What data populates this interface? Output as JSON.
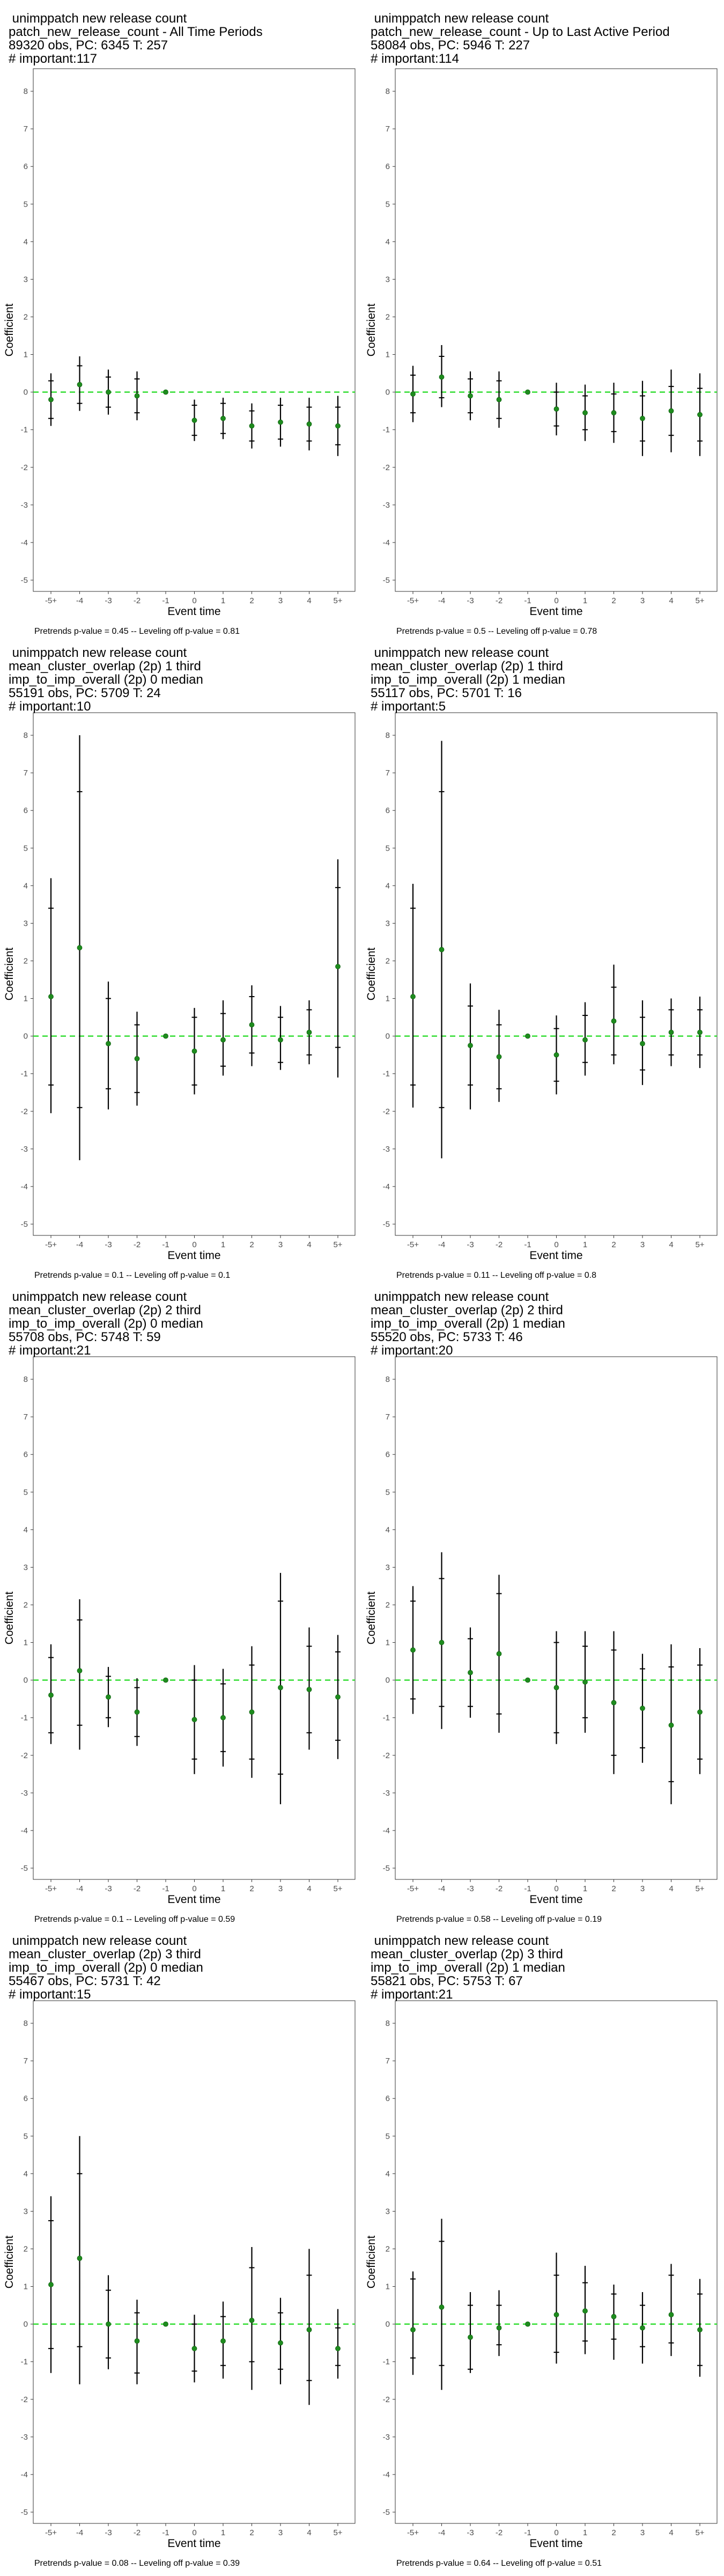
{
  "layout": {
    "columns": 2,
    "rows": 4
  },
  "style": {
    "point_color": "#1e8c1e",
    "zero_line_color": "#33dd33",
    "bar_color": "#000000",
    "frame_color": "#333333",
    "grid": false
  },
  "chart_data": [
    {
      "type": "scatter",
      "title": [
        " unimppatch new release count",
        "patch_new_release_count - All Time Periods",
        "89320 obs, PC: 6345 T: 257",
        "# important:117"
      ],
      "xlabel": "Event time",
      "ylabel": "Coefficient",
      "x": [
        "-5+",
        "-4",
        "-3",
        "-2",
        "-1",
        "0",
        "1",
        "2",
        "3",
        "4",
        "5+"
      ],
      "y": [
        -0.2,
        0.2,
        0.0,
        -0.1,
        0.0,
        -0.75,
        -0.7,
        -0.9,
        -0.8,
        -0.85,
        -0.9
      ],
      "ci_90": [
        [
          -0.7,
          0.3
        ],
        [
          -0.3,
          0.7
        ],
        [
          -0.4,
          0.4
        ],
        [
          -0.55,
          0.35
        ],
        [
          0.0,
          0.0
        ],
        [
          -1.15,
          -0.35
        ],
        [
          -1.1,
          -0.3
        ],
        [
          -1.3,
          -0.5
        ],
        [
          -1.25,
          -0.35
        ],
        [
          -1.3,
          -0.4
        ],
        [
          -1.4,
          -0.4
        ]
      ],
      "ci_95": [
        [
          -0.9,
          0.5
        ],
        [
          -0.5,
          0.95
        ],
        [
          -0.6,
          0.6
        ],
        [
          -0.75,
          0.55
        ],
        [
          0.0,
          0.0
        ],
        [
          -1.3,
          -0.2
        ],
        [
          -1.25,
          -0.15
        ],
        [
          -1.5,
          -0.3
        ],
        [
          -1.45,
          -0.15
        ],
        [
          -1.55,
          -0.15
        ],
        [
          -1.7,
          -0.1
        ]
      ],
      "ylim": [
        -5.3,
        8.6
      ],
      "yticks": [
        -5,
        -4,
        -3,
        -2,
        -1,
        0,
        1,
        2,
        3,
        4,
        5,
        6,
        7,
        8
      ],
      "footnote": "Pretrends p-value = 0.45 -- Leveling off p-value = 0.81"
    },
    {
      "type": "scatter",
      "title": [
        " unimppatch new release count",
        "patch_new_release_count - Up to Last Active Period",
        "58084 obs, PC: 5946 T: 227",
        "# important:114"
      ],
      "xlabel": "Event time",
      "ylabel": "Coefficient",
      "x": [
        "-5+",
        "-4",
        "-3",
        "-2",
        "-1",
        "0",
        "1",
        "2",
        "3",
        "4",
        "5+"
      ],
      "y": [
        -0.05,
        0.4,
        -0.1,
        -0.2,
        0.0,
        -0.45,
        -0.55,
        -0.55,
        -0.7,
        -0.5,
        -0.6
      ],
      "ci_90": [
        [
          -0.55,
          0.45
        ],
        [
          -0.15,
          0.95
        ],
        [
          -0.55,
          0.35
        ],
        [
          -0.7,
          0.3
        ],
        [
          0.0,
          0.0
        ],
        [
          -0.9,
          0.0
        ],
        [
          -1.0,
          -0.1
        ],
        [
          -1.05,
          -0.05
        ],
        [
          -1.3,
          -0.1
        ],
        [
          -1.15,
          0.15
        ],
        [
          -1.3,
          0.1
        ]
      ],
      "ci_95": [
        [
          -0.8,
          0.7
        ],
        [
          -0.4,
          1.25
        ],
        [
          -0.75,
          0.55
        ],
        [
          -0.95,
          0.55
        ],
        [
          0.0,
          0.0
        ],
        [
          -1.15,
          0.25
        ],
        [
          -1.3,
          0.2
        ],
        [
          -1.35,
          0.25
        ],
        [
          -1.7,
          0.3
        ],
        [
          -1.6,
          0.6
        ],
        [
          -1.7,
          0.5
        ]
      ],
      "ylim": [
        -5.3,
        8.6
      ],
      "yticks": [
        -5,
        -4,
        -3,
        -2,
        -1,
        0,
        1,
        2,
        3,
        4,
        5,
        6,
        7,
        8
      ],
      "footnote": "Pretrends p-value = 0.5 -- Leveling off p-value = 0.78"
    },
    {
      "type": "scatter",
      "title": [
        " unimppatch new release count",
        "mean_cluster_overlap (2p) 1 third",
        "imp_to_imp_overall (2p) 0 median",
        "55191 obs, PC: 5709 T: 24",
        "# important:10"
      ],
      "xlabel": "Event time",
      "ylabel": "Coefficient",
      "x": [
        "-5+",
        "-4",
        "-3",
        "-2",
        "-1",
        "0",
        "1",
        "2",
        "3",
        "4",
        "5+"
      ],
      "y": [
        1.05,
        2.35,
        -0.2,
        -0.6,
        0.0,
        -0.4,
        -0.1,
        0.3,
        -0.1,
        0.1,
        1.85
      ],
      "ci_90": [
        [
          -1.3,
          3.4
        ],
        [
          -1.9,
          6.5
        ],
        [
          -1.4,
          1.0
        ],
        [
          -1.5,
          0.3
        ],
        [
          0.0,
          0.0
        ],
        [
          -1.3,
          0.5
        ],
        [
          -0.8,
          0.6
        ],
        [
          -0.45,
          1.05
        ],
        [
          -0.7,
          0.5
        ],
        [
          -0.5,
          0.7
        ],
        [
          -0.3,
          3.95
        ]
      ],
      "ci_95": [
        [
          -2.05,
          4.2
        ],
        [
          -3.3,
          8.0
        ],
        [
          -1.95,
          1.45
        ],
        [
          -1.85,
          0.65
        ],
        [
          0.0,
          0.0
        ],
        [
          -1.55,
          0.75
        ],
        [
          -1.05,
          0.95
        ],
        [
          -0.8,
          1.35
        ],
        [
          -0.9,
          0.8
        ],
        [
          -0.75,
          0.95
        ],
        [
          -1.1,
          4.7
        ]
      ],
      "ylim": [
        -5.3,
        8.6
      ],
      "yticks": [
        -5,
        -4,
        -3,
        -2,
        -1,
        0,
        1,
        2,
        3,
        4,
        5,
        6,
        7,
        8
      ],
      "footnote": "Pretrends p-value = 0.1 -- Leveling off p-value = 0.1"
    },
    {
      "type": "scatter",
      "title": [
        " unimppatch new release count",
        "mean_cluster_overlap (2p) 1 third",
        "imp_to_imp_overall (2p) 1 median",
        "55117 obs, PC: 5701 T: 16",
        "# important:5"
      ],
      "xlabel": "Event time",
      "ylabel": "Coefficient",
      "x": [
        "-5+",
        "-4",
        "-3",
        "-2",
        "-1",
        "0",
        "1",
        "2",
        "3",
        "4",
        "5+"
      ],
      "y": [
        1.05,
        2.3,
        -0.25,
        -0.55,
        0.0,
        -0.5,
        -0.1,
        0.4,
        -0.2,
        0.1,
        0.1
      ],
      "ci_90": [
        [
          -1.3,
          3.4
        ],
        [
          -1.9,
          6.5
        ],
        [
          -1.3,
          0.8
        ],
        [
          -1.4,
          0.3
        ],
        [
          0.0,
          0.0
        ],
        [
          -1.2,
          0.2
        ],
        [
          -0.7,
          0.55
        ],
        [
          -0.5,
          1.3
        ],
        [
          -0.9,
          0.5
        ],
        [
          -0.5,
          0.7
        ],
        [
          -0.5,
          0.7
        ]
      ],
      "ci_95": [
        [
          -1.9,
          4.05
        ],
        [
          -3.25,
          7.85
        ],
        [
          -1.95,
          1.4
        ],
        [
          -1.75,
          0.7
        ],
        [
          0.0,
          0.0
        ],
        [
          -1.55,
          0.55
        ],
        [
          -1.05,
          0.9
        ],
        [
          -0.75,
          1.9
        ],
        [
          -1.3,
          0.95
        ],
        [
          -0.8,
          1.0
        ],
        [
          -0.85,
          1.05
        ]
      ],
      "ylim": [
        -5.3,
        8.6
      ],
      "yticks": [
        -5,
        -4,
        -3,
        -2,
        -1,
        0,
        1,
        2,
        3,
        4,
        5,
        6,
        7,
        8
      ],
      "footnote": "Pretrends p-value = 0.11 -- Leveling off p-value = 0.8"
    },
    {
      "type": "scatter",
      "title": [
        " unimppatch new release count",
        "mean_cluster_overlap (2p) 2 third",
        "imp_to_imp_overall (2p) 0 median",
        "55708 obs, PC: 5748 T: 59",
        "# important:21"
      ],
      "xlabel": "Event time",
      "ylabel": "Coefficient",
      "x": [
        "-5+",
        "-4",
        "-3",
        "-2",
        "-1",
        "0",
        "1",
        "2",
        "3",
        "4",
        "5+"
      ],
      "y": [
        -0.4,
        0.25,
        -0.45,
        -0.85,
        0.0,
        -1.05,
        -1.0,
        -0.85,
        -0.2,
        -0.25,
        -0.45
      ],
      "ci_90": [
        [
          -1.4,
          0.6
        ],
        [
          -1.2,
          1.6
        ],
        [
          -1.0,
          0.1
        ],
        [
          -1.5,
          -0.2
        ],
        [
          0.0,
          0.0
        ],
        [
          -2.1,
          0.0
        ],
        [
          -1.9,
          -0.1
        ],
        [
          -2.1,
          0.4
        ],
        [
          -2.5,
          2.1
        ],
        [
          -1.4,
          0.9
        ],
        [
          -1.6,
          0.75
        ]
      ],
      "ci_95": [
        [
          -1.7,
          0.95
        ],
        [
          -1.85,
          2.15
        ],
        [
          -1.25,
          0.35
        ],
        [
          -1.75,
          0.05
        ],
        [
          0.0,
          0.0
        ],
        [
          -2.5,
          0.4
        ],
        [
          -2.3,
          0.3
        ],
        [
          -2.6,
          0.9
        ],
        [
          -3.3,
          2.85
        ],
        [
          -1.85,
          1.4
        ],
        [
          -2.1,
          1.2
        ]
      ],
      "ylim": [
        -5.3,
        8.6
      ],
      "yticks": [
        -5,
        -4,
        -3,
        -2,
        -1,
        0,
        1,
        2,
        3,
        4,
        5,
        6,
        7,
        8
      ],
      "footnote": "Pretrends p-value = 0.1 -- Leveling off p-value = 0.59"
    },
    {
      "type": "scatter",
      "title": [
        " unimppatch new release count",
        "mean_cluster_overlap (2p) 2 third",
        "imp_to_imp_overall (2p) 1 median",
        "55520 obs, PC: 5733 T: 46",
        "# important:20"
      ],
      "xlabel": "Event time",
      "ylabel": "Coefficient",
      "x": [
        "-5+",
        "-4",
        "-3",
        "-2",
        "-1",
        "0",
        "1",
        "2",
        "3",
        "4",
        "5+"
      ],
      "y": [
        0.8,
        1.0,
        0.2,
        0.7,
        0.0,
        -0.2,
        -0.05,
        -0.6,
        -0.75,
        -1.2,
        -0.85
      ],
      "ci_90": [
        [
          -0.5,
          2.1
        ],
        [
          -0.7,
          2.7
        ],
        [
          -0.7,
          1.1
        ],
        [
          -0.9,
          2.3
        ],
        [
          0.0,
          0.0
        ],
        [
          -1.4,
          1.0
        ],
        [
          -1.0,
          0.9
        ],
        [
          -2.0,
          0.8
        ],
        [
          -1.8,
          0.3
        ],
        [
          -2.7,
          0.35
        ],
        [
          -2.1,
          0.4
        ]
      ],
      "ci_95": [
        [
          -0.9,
          2.5
        ],
        [
          -1.3,
          3.4
        ],
        [
          -1.0,
          1.4
        ],
        [
          -1.4,
          2.8
        ],
        [
          0.0,
          0.0
        ],
        [
          -1.7,
          1.3
        ],
        [
          -1.4,
          1.3
        ],
        [
          -2.5,
          1.3
        ],
        [
          -2.2,
          0.7
        ],
        [
          -3.3,
          0.95
        ],
        [
          -2.5,
          0.85
        ]
      ],
      "ylim": [
        -5.3,
        8.6
      ],
      "yticks": [
        -5,
        -4,
        -3,
        -2,
        -1,
        0,
        1,
        2,
        3,
        4,
        5,
        6,
        7,
        8
      ],
      "footnote": "Pretrends p-value = 0.58 -- Leveling off p-value = 0.19"
    },
    {
      "type": "scatter",
      "title": [
        " unimppatch new release count",
        "mean_cluster_overlap (2p) 3 third",
        "imp_to_imp_overall (2p) 0 median",
        "55467 obs, PC: 5731 T: 42",
        "# important:15"
      ],
      "xlabel": "Event time",
      "ylabel": "Coefficient",
      "x": [
        "-5+",
        "-4",
        "-3",
        "-2",
        "-1",
        "0",
        "1",
        "2",
        "3",
        "4",
        "5+"
      ],
      "y": [
        1.05,
        1.75,
        0.0,
        -0.45,
        0.0,
        -0.65,
        -0.45,
        0.1,
        -0.5,
        -0.15,
        -0.65
      ],
      "ci_90": [
        [
          -0.65,
          2.75
        ],
        [
          -0.6,
          4.0
        ],
        [
          -0.9,
          0.9
        ],
        [
          -1.3,
          0.3
        ],
        [
          0.0,
          0.0
        ],
        [
          -1.25,
          0.0
        ],
        [
          -1.1,
          0.2
        ],
        [
          -1.0,
          1.5
        ],
        [
          -1.2,
          0.3
        ],
        [
          -1.5,
          1.3
        ],
        [
          -1.1,
          -0.1
        ]
      ],
      "ci_95": [
        [
          -1.3,
          3.4
        ],
        [
          -1.6,
          5.0
        ],
        [
          -1.2,
          1.3
        ],
        [
          -1.6,
          0.65
        ],
        [
          0.0,
          0.0
        ],
        [
          -1.55,
          0.25
        ],
        [
          -1.45,
          0.6
        ],
        [
          -1.75,
          2.05
        ],
        [
          -1.6,
          0.7
        ],
        [
          -2.15,
          2.0
        ],
        [
          -1.45,
          0.4
        ]
      ],
      "ylim": [
        -5.3,
        8.6
      ],
      "yticks": [
        -5,
        -4,
        -3,
        -2,
        -1,
        0,
        1,
        2,
        3,
        4,
        5,
        6,
        7,
        8
      ],
      "footnote": "Pretrends p-value = 0.08 -- Leveling off p-value = 0.39"
    },
    {
      "type": "scatter",
      "title": [
        " unimppatch new release count",
        "mean_cluster_overlap (2p) 3 third",
        "imp_to_imp_overall (2p) 1 median",
        "55821 obs, PC: 5753 T: 67",
        "# important:21"
      ],
      "xlabel": "Event time",
      "ylabel": "Coefficient",
      "x": [
        "-5+",
        "-4",
        "-3",
        "-2",
        "-1",
        "0",
        "1",
        "2",
        "3",
        "4",
        "5+"
      ],
      "y": [
        -0.15,
        0.45,
        -0.35,
        -0.1,
        0.0,
        0.25,
        0.35,
        0.2,
        -0.1,
        0.25,
        -0.15
      ],
      "ci_90": [
        [
          -0.9,
          1.2
        ],
        [
          -1.1,
          2.2
        ],
        [
          -1.2,
          0.5
        ],
        [
          -0.55,
          0.5
        ],
        [
          0.0,
          0.0
        ],
        [
          -0.75,
          1.3
        ],
        [
          -0.45,
          1.1
        ],
        [
          -0.4,
          0.8
        ],
        [
          -0.6,
          0.5
        ],
        [
          -0.5,
          1.3
        ],
        [
          -1.1,
          0.8
        ]
      ],
      "ci_95": [
        [
          -1.35,
          1.4
        ],
        [
          -1.75,
          2.8
        ],
        [
          -1.3,
          0.85
        ],
        [
          -0.85,
          0.9
        ],
        [
          0.0,
          0.0
        ],
        [
          -1.05,
          1.9
        ],
        [
          -0.8,
          1.55
        ],
        [
          -0.95,
          1.05
        ],
        [
          -1.05,
          0.85
        ],
        [
          -0.85,
          1.6
        ],
        [
          -1.4,
          1.2
        ]
      ],
      "ylim": [
        -5.3,
        8.6
      ],
      "yticks": [
        -5,
        -4,
        -3,
        -2,
        -1,
        0,
        1,
        2,
        3,
        4,
        5,
        6,
        7,
        8
      ],
      "footnote": "Pretrends p-value = 0.64 -- Leveling off p-value = 0.51"
    }
  ]
}
